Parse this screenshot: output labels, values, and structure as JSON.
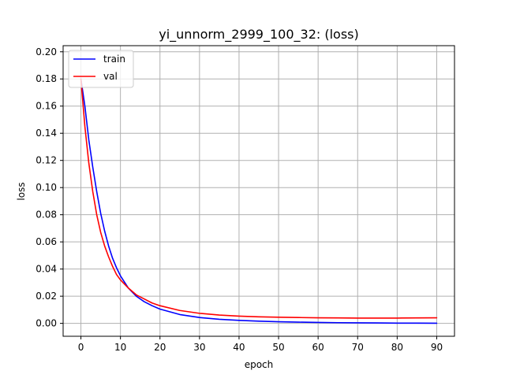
{
  "chart_data": {
    "type": "line",
    "title": "yi_unnorm_2999_100_32: (loss)",
    "xlabel": "epoch",
    "ylabel": "loss",
    "xlim": [
      -4.5,
      94.5
    ],
    "ylim": [
      -0.0095,
      0.2045
    ],
    "xticks": [
      0,
      10,
      20,
      30,
      40,
      50,
      60,
      70,
      80,
      90
    ],
    "xtick_labels": [
      "0",
      "10",
      "20",
      "30",
      "40",
      "50",
      "60",
      "70",
      "80",
      "90"
    ],
    "yticks": [
      0.0,
      0.02,
      0.04,
      0.06,
      0.08,
      0.1,
      0.12,
      0.14,
      0.16,
      0.18,
      0.2
    ],
    "ytick_labels": [
      "0.00",
      "0.02",
      "0.04",
      "0.06",
      "0.08",
      "0.10",
      "0.12",
      "0.14",
      "0.16",
      "0.18",
      "0.20"
    ],
    "grid": true,
    "legend_position": "top-left",
    "x": [
      0,
      1,
      2,
      3,
      4,
      5,
      6,
      7,
      8,
      9,
      10,
      12,
      14,
      16,
      18,
      20,
      25,
      30,
      35,
      40,
      45,
      50,
      55,
      60,
      65,
      70,
      75,
      80,
      85,
      90
    ],
    "series": [
      {
        "name": "train",
        "color": "#0000ff",
        "values": [
          0.18,
          0.16,
          0.135,
          0.115,
          0.097,
          0.081,
          0.068,
          0.057,
          0.048,
          0.041,
          0.035,
          0.026,
          0.02,
          0.016,
          0.013,
          0.0105,
          0.0065,
          0.0043,
          0.003,
          0.0022,
          0.0016,
          0.0012,
          0.0009,
          0.0007,
          0.0005,
          0.0004,
          0.0003,
          0.0002,
          0.0002,
          0.0001
        ]
      },
      {
        "name": "val",
        "color": "#ff0000",
        "values": [
          0.18,
          0.145,
          0.118,
          0.097,
          0.08,
          0.067,
          0.057,
          0.049,
          0.042,
          0.036,
          0.032,
          0.026,
          0.021,
          0.018,
          0.015,
          0.013,
          0.0095,
          0.0074,
          0.0061,
          0.0053,
          0.0048,
          0.0045,
          0.0043,
          0.0041,
          0.004,
          0.0039,
          0.0039,
          0.0039,
          0.004,
          0.0041
        ]
      }
    ]
  }
}
